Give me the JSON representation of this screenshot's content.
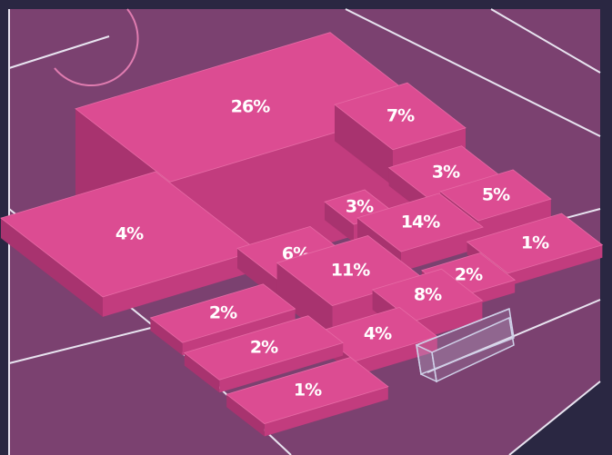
{
  "zones": [
    {
      "label": "26%"
    },
    {
      "label": "7%"
    },
    {
      "label": "4%"
    },
    {
      "label": "3%"
    },
    {
      "label": "3%"
    },
    {
      "label": "5%"
    },
    {
      "label": "14%"
    },
    {
      "label": "6%"
    },
    {
      "label": "11%"
    },
    {
      "label": "1%"
    },
    {
      "label": "2%"
    },
    {
      "label": "8%"
    },
    {
      "label": "2%"
    },
    {
      "label": "4%"
    },
    {
      "label": "2%"
    },
    {
      "label": "1%"
    }
  ]
}
